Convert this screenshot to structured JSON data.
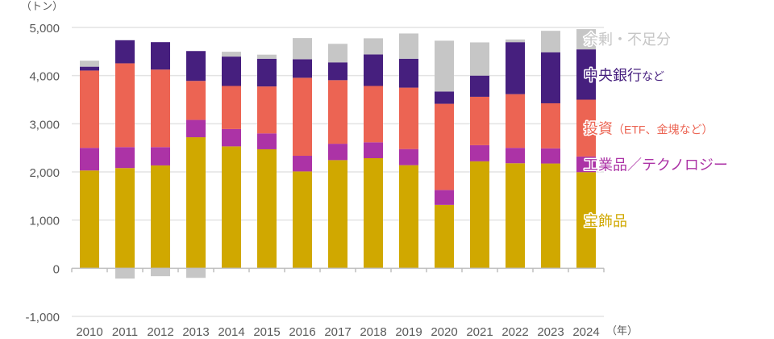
{
  "chart_data": {
    "type": "bar",
    "stacked": true,
    "title": "",
    "ylabel": "（トン）",
    "xlabel": "（年）",
    "ylim": [
      -1000,
      5000
    ],
    "yticks": [
      5000,
      4000,
      3000,
      2000,
      1000,
      0,
      -1000
    ],
    "ytick_labels": [
      "5,000",
      "4,000",
      "3,000",
      "2,000",
      "1,000",
      "0",
      "-1,000"
    ],
    "grid": true,
    "legend_position": "right",
    "categories": [
      "2010",
      "2011",
      "2012",
      "2013",
      "2014",
      "2015",
      "2016",
      "2017",
      "2018",
      "2019",
      "2020",
      "2021",
      "2022",
      "2023",
      "2024"
    ],
    "series": [
      {
        "name": "宝飾品",
        "label_main": "宝飾品",
        "label_sub": "",
        "color": "#D0A800",
        "values": [
          2030,
          2080,
          2135,
          2720,
          2530,
          2470,
          2010,
          2245,
          2285,
          2140,
          1315,
          2220,
          2180,
          2175,
          1995
        ]
      },
      {
        "name": "工業品／テクノロジー",
        "label_main": "工業品／テクノロジー",
        "label_sub": "",
        "color": "#AC33A6",
        "values": [
          470,
          435,
          380,
          360,
          360,
          330,
          325,
          340,
          330,
          335,
          310,
          335,
          320,
          315,
          325
        ]
      },
      {
        "name": "投資（ETF、金塊など）",
        "label_main": "投資",
        "label_sub": "（ETF、金塊など）",
        "color": "#EC6453",
        "values": [
          1605,
          1740,
          1610,
          810,
          895,
          975,
          1620,
          1320,
          1170,
          1275,
          1790,
          1005,
          1115,
          935,
          1180
        ]
      },
      {
        "name": "中央銀行など",
        "label_main": "中央銀行",
        "label_sub": "など",
        "color": "#461F7E",
        "values": [
          80,
          480,
          570,
          620,
          610,
          575,
          385,
          370,
          655,
          600,
          255,
          440,
          1080,
          1060,
          1045
        ]
      },
      {
        "name": "余剰・不足分",
        "label_main": "余剰・不足分",
        "label_sub": "",
        "color": "#C6C6C6",
        "values": [
          125,
          -215,
          -165,
          -200,
          100,
          85,
          440,
          385,
          335,
          525,
          1055,
          690,
          55,
          445,
          420
        ]
      }
    ]
  }
}
